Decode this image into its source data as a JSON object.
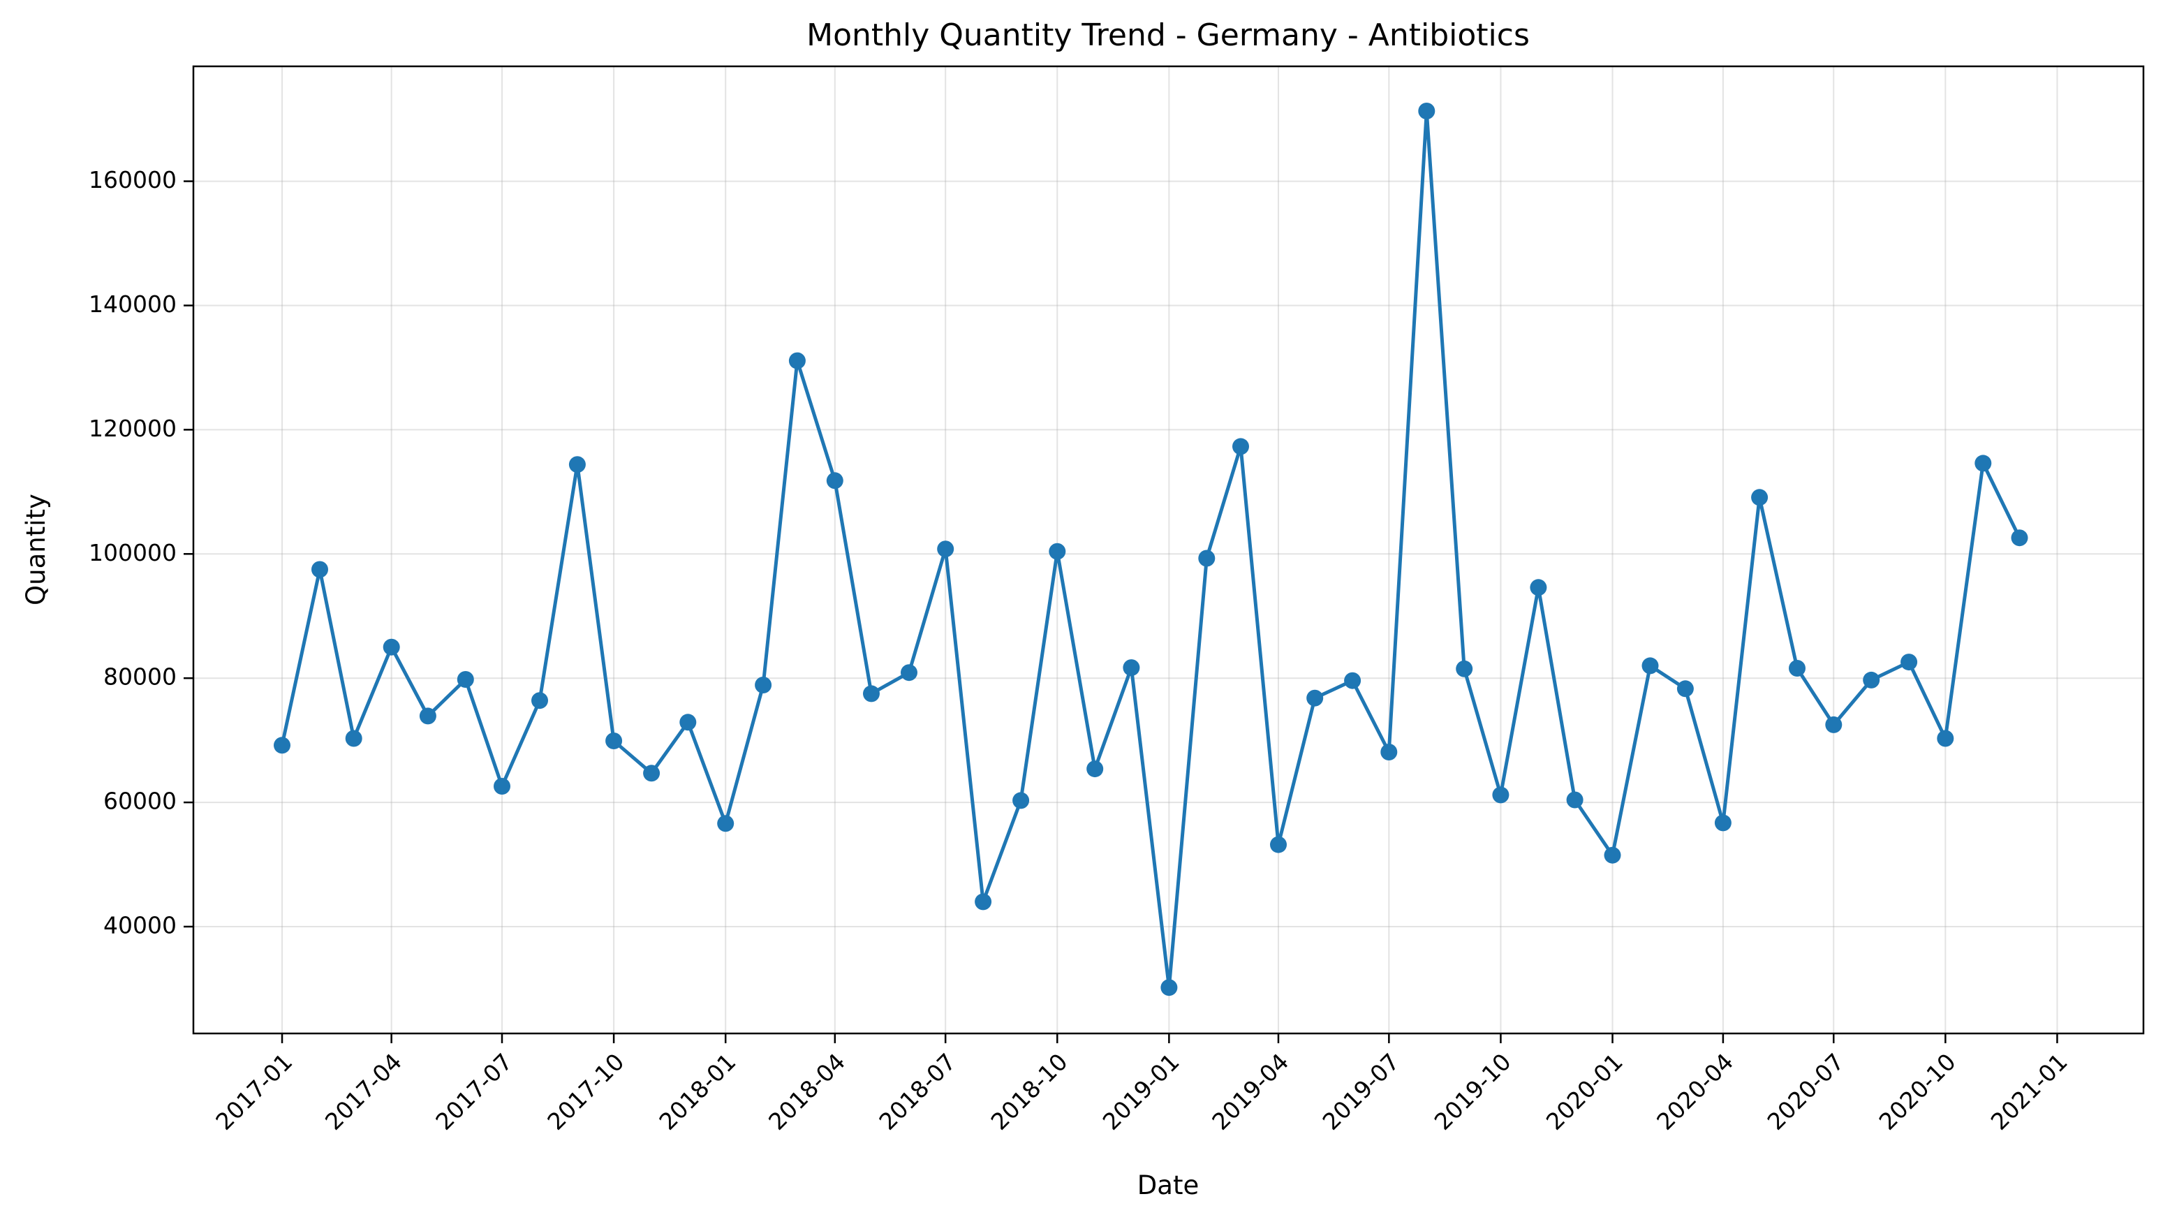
{
  "chart_data": {
    "type": "line",
    "title": "Monthly Quantity Trend - Germany - Antibiotics",
    "xlabel": "Date",
    "ylabel": "Quantity",
    "x_range": [
      "2016-10-20",
      "2021-03-13"
    ],
    "ylim": [
      22800,
      178500
    ],
    "x_ticks": [
      "2017-01",
      "2017-04",
      "2017-07",
      "2017-10",
      "2018-01",
      "2018-04",
      "2018-07",
      "2018-10",
      "2019-01",
      "2019-04",
      "2019-07",
      "2019-10",
      "2020-01",
      "2020-04",
      "2020-07",
      "2020-10",
      "2021-01"
    ],
    "y_ticks": [
      40000,
      60000,
      80000,
      100000,
      120000,
      140000,
      160000
    ],
    "grid": true,
    "legend": "none",
    "line_color": "#1f77b4",
    "marker": "circle",
    "series": [
      {
        "x": [
          "2017-01-01",
          "2017-02-01",
          "2017-03-01",
          "2017-04-01",
          "2017-05-01",
          "2017-06-01",
          "2017-07-01",
          "2017-08-01",
          "2017-09-01",
          "2017-10-01",
          "2017-11-01",
          "2017-12-01",
          "2018-01-01",
          "2018-02-01",
          "2018-03-01",
          "2018-04-01",
          "2018-05-01",
          "2018-06-01",
          "2018-07-01",
          "2018-08-01",
          "2018-09-01",
          "2018-10-01",
          "2018-11-01",
          "2018-12-01",
          "2019-01-01",
          "2019-02-01",
          "2019-03-01",
          "2019-04-01",
          "2019-05-01",
          "2019-06-01",
          "2019-07-01",
          "2019-08-01",
          "2019-09-01",
          "2019-10-01",
          "2019-11-01",
          "2019-12-01",
          "2020-01-01",
          "2020-02-01",
          "2020-03-01",
          "2020-04-01",
          "2020-05-01",
          "2020-06-01",
          "2020-07-01",
          "2020-08-01",
          "2020-09-01",
          "2020-10-01",
          "2020-11-01",
          "2020-12-01"
        ],
        "values": [
          69200,
          97500,
          70300,
          85000,
          73900,
          79800,
          62600,
          76400,
          114400,
          69900,
          64700,
          72900,
          56600,
          78900,
          131100,
          111800,
          77500,
          80900,
          100800,
          44000,
          60300,
          100400,
          65400,
          81700,
          30200,
          99300,
          117300,
          53200,
          76800,
          79600,
          68100,
          171300,
          81500,
          61200,
          94600,
          60400,
          51500,
          82000,
          78300,
          56700,
          109100,
          81600,
          72500,
          79700,
          82600,
          70300,
          114600,
          102600
        ]
      }
    ]
  }
}
